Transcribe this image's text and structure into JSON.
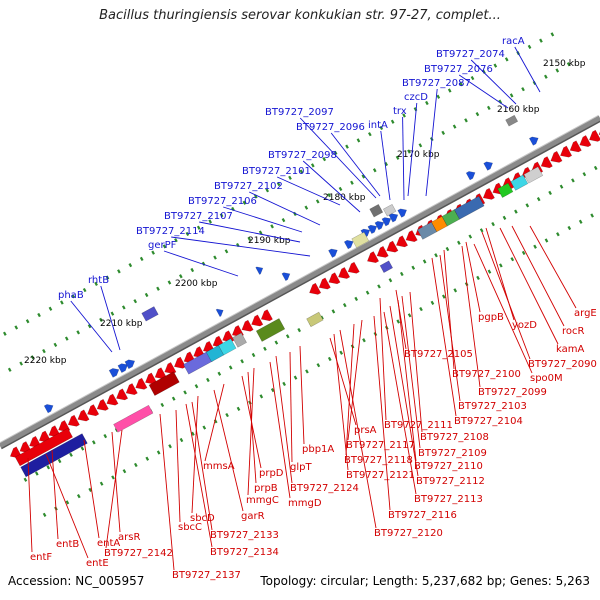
{
  "title": "Bacillus thuringiensis serovar konkukian str. 97-27, complet...",
  "footer": {
    "accession": "Accession: NC_005957",
    "summary": "Topology: circular; Length: 5,237,682 bp; Genes: 5,263"
  },
  "ticks": [
    "2150 kbp",
    "2160 kbp",
    "2170 kbp",
    "2180 kbp",
    "2190 kbp",
    "2200 kbp",
    "2210 kbp",
    "2220 kbp"
  ],
  "blue_labels": [
    "racA",
    "BT9727_2074",
    "BT9727_2076",
    "BT9727_2087",
    "czcD",
    "trx",
    "intA",
    "BT9727_2096",
    "BT9727_2097",
    "BT9727_2098",
    "BT9727_2101",
    "BT9727_2102",
    "BT9727_2106",
    "BT9727_2107",
    "BT9727_2114",
    "gerPF",
    "rhtB",
    "phaB"
  ],
  "red_labels": [
    "argE",
    "rocR",
    "kamA",
    "yozD",
    "BT9727_2090",
    "pgpB",
    "spo0M",
    "BT9727_2099",
    "BT9727_2100",
    "BT9727_2103",
    "BT9727_2104",
    "BT9727_2105",
    "BT9727_2108",
    "BT9727_2109",
    "BT9727_2110",
    "BT9727_2111",
    "BT9727_2112",
    "BT9727_2113",
    "BT9727_2116",
    "BT9727_2117",
    "BT9727_2118",
    "BT9727_2120",
    "BT9727_2121",
    "prsA",
    "pbp1A",
    "glpT",
    "BT9727_2124",
    "mmgD",
    "mmgC",
    "prpB",
    "prpD",
    "mmsA",
    "garR",
    "sbcD",
    "BT9727_2133",
    "BT9727_2134",
    "sbcC",
    "BT9727_2137",
    "BT9727_2142",
    "arsR",
    "entA",
    "entB",
    "entE",
    "entF"
  ],
  "colors": {
    "forward": "#1a4fd8",
    "reverse": "#e8000a",
    "backbone": "#8a8a8a",
    "tick": "#2e8b2e",
    "label_blue": "#1414d2",
    "label_red": "#d20000"
  }
}
